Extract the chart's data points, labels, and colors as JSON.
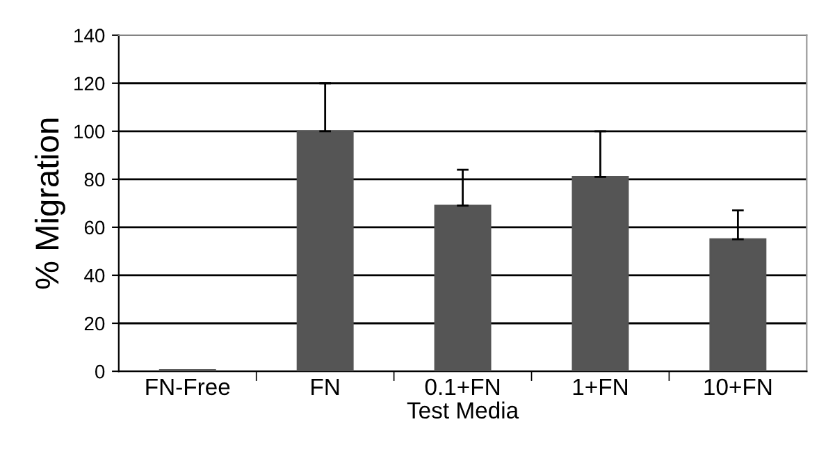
{
  "chart_data": {
    "type": "bar",
    "xlabel": "Test Media",
    "ylabel": "% Migration",
    "categories": [
      "FN-Free",
      "FN",
      "0.1+FN",
      "1+FN",
      "10+FN"
    ],
    "values": [
      0.5,
      100,
      69,
      81,
      55
    ],
    "errors": [
      null,
      [
        100,
        120
      ],
      [
        69,
        84
      ],
      [
        81,
        100
      ],
      [
        55,
        67
      ]
    ],
    "color": "#555555",
    "ylim": [
      0,
      140
    ],
    "yticks": [
      0,
      20,
      40,
      60,
      80,
      100,
      120,
      140
    ],
    "grid": "y",
    "legend": false
  }
}
